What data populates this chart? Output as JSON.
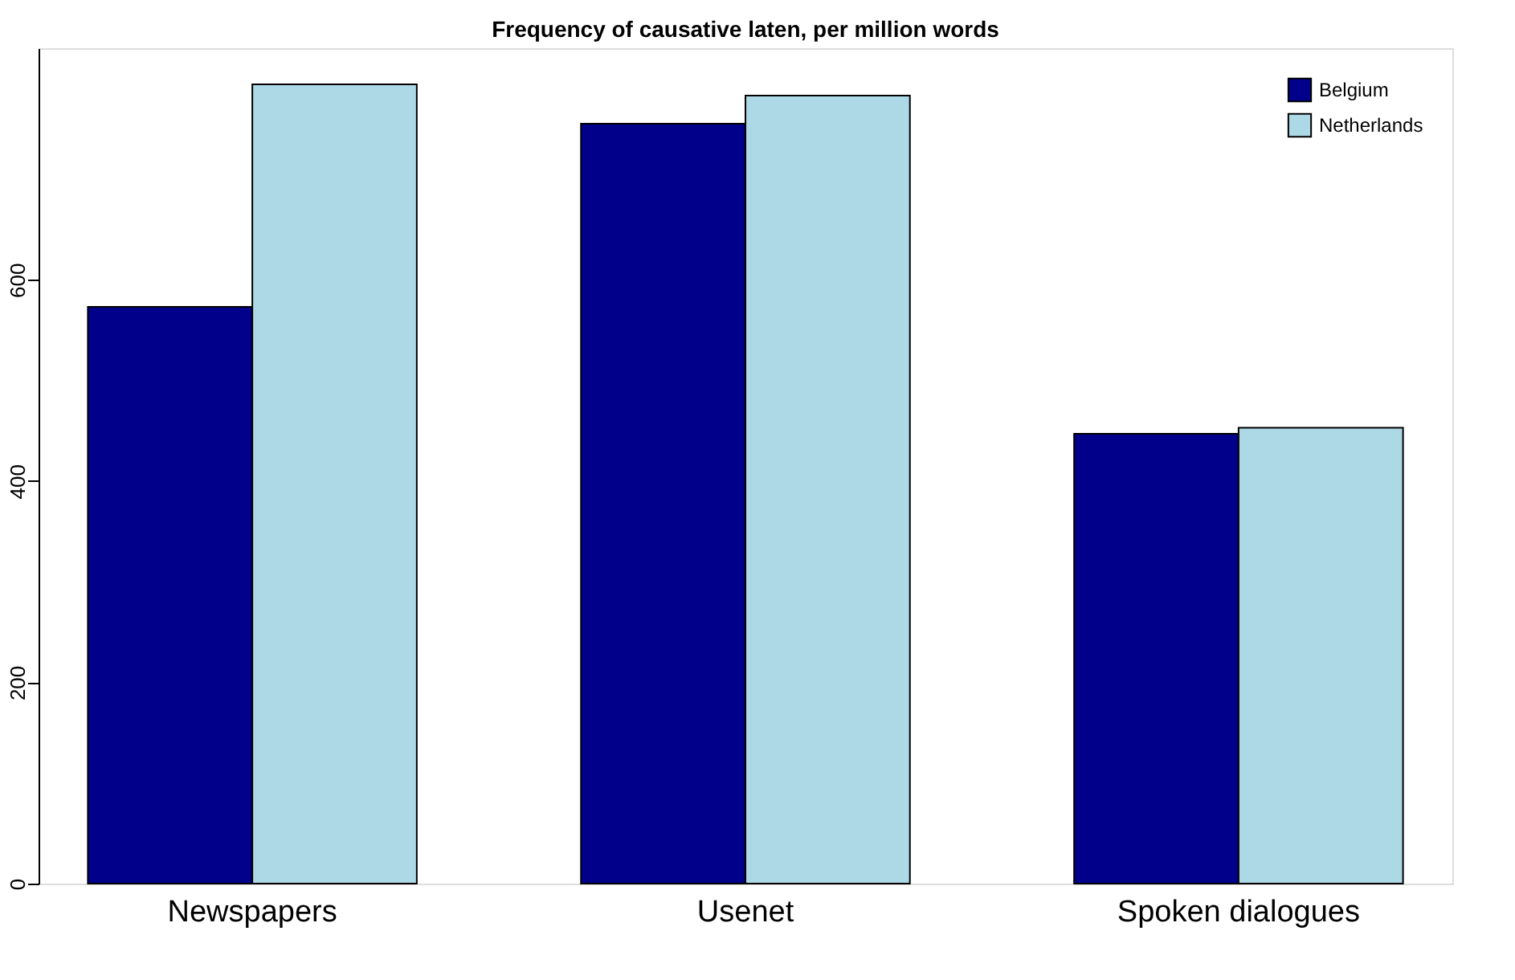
{
  "chart_data": {
    "type": "bar",
    "title": "Frequency of causative laten, per million words",
    "categories": [
      "Newspapers",
      "Usenet",
      "Spoken dialogues"
    ],
    "series": [
      {
        "name": "Belgium",
        "color": "#00008b",
        "values": [
          573,
          755,
          447
        ]
      },
      {
        "name": "Netherlands",
        "color": "#add8e6",
        "values": [
          794,
          783,
          453
        ]
      }
    ],
    "ylim": [
      0,
      830
    ],
    "yticks": [
      0,
      200,
      400,
      600
    ],
    "grid": false,
    "legend": "top right"
  }
}
